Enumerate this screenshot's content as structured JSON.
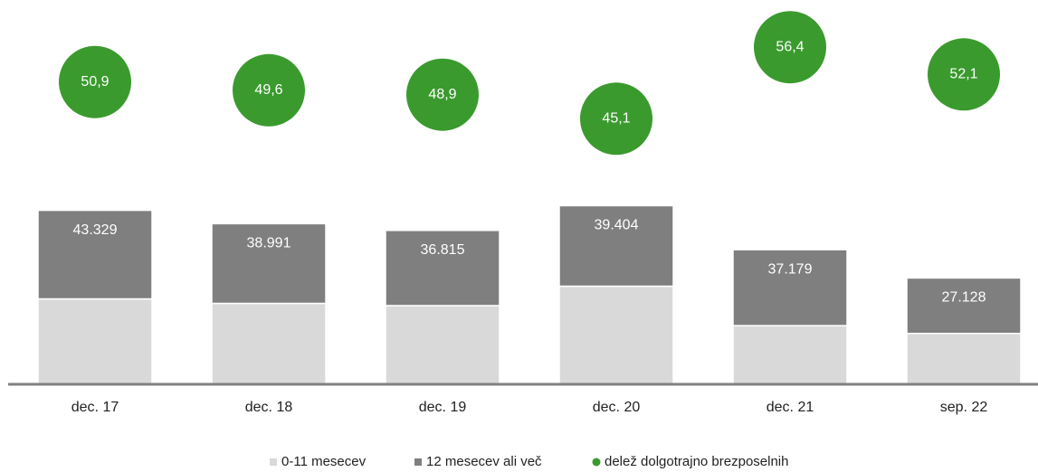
{
  "chart_data": {
    "type": "bar",
    "stacked": true,
    "categories": [
      "dec. 17",
      "dec. 18",
      "dec. 19",
      "dec. 20",
      "dec. 21",
      "sep. 22"
    ],
    "series": [
      {
        "name": "0-11 mesecev",
        "color": "#d9d9d9",
        "values": [
          41800,
          39600,
          38500,
          48000,
          28700,
          24900
        ]
      },
      {
        "name": "12 mesecev ali več",
        "color": "#7f7f7f",
        "values": [
          43329,
          38991,
          36815,
          39404,
          37179,
          27128
        ],
        "value_labels": [
          "43.329",
          "38.991",
          "36.815",
          "39.404",
          "37.179",
          "27.128"
        ]
      },
      {
        "name": "delež dolgotrajno brezposelnih",
        "color": "#3a9a2e",
        "axis": "y2",
        "values": [
          50.9,
          49.6,
          48.9,
          45.1,
          56.4,
          52.1
        ],
        "value_labels": [
          "50,9",
          "49,6",
          "48,9",
          "45,1",
          "56,4",
          "52,1"
        ]
      }
    ],
    "ylim": [
      0,
      100000
    ],
    "y2lim": [
      40,
      60
    ],
    "legend": "bottom"
  }
}
